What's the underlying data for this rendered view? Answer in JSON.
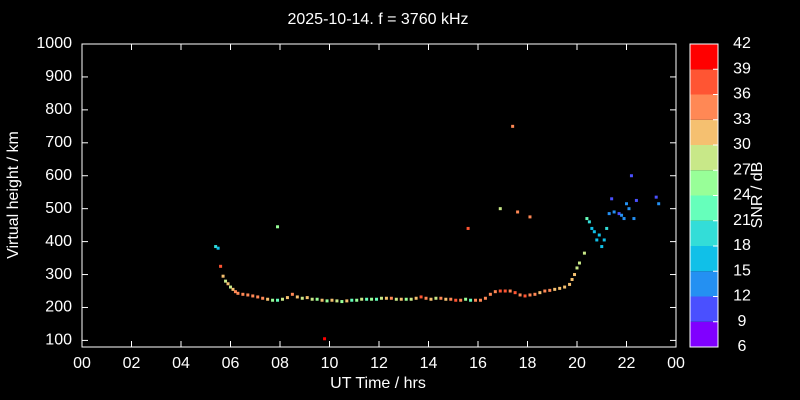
{
  "chart_data": {
    "type": "scatter",
    "title": "2025-10-14. f = 3760 kHz",
    "xlabel": "UT Time / hrs",
    "ylabel": "Virtual height / km",
    "xlim": [
      0,
      24
    ],
    "ylim": [
      80,
      1000
    ],
    "xticks": [
      {
        "value": 0,
        "label": "00"
      },
      {
        "value": 2,
        "label": "02"
      },
      {
        "value": 4,
        "label": "04"
      },
      {
        "value": 6,
        "label": "06"
      },
      {
        "value": 8,
        "label": "08"
      },
      10,
      12,
      14,
      16,
      18,
      20,
      22,
      {
        "value": 24,
        "label": "00"
      }
    ],
    "yticks": [
      100,
      200,
      300,
      400,
      500,
      600,
      700,
      800,
      900,
      1000
    ],
    "x": [
      5.4,
      5.5,
      5.6,
      5.7,
      5.8,
      5.9,
      6.0,
      6.1,
      6.2,
      6.3,
      6.5,
      6.7,
      6.9,
      7.1,
      7.3,
      7.5,
      7.7,
      7.9,
      8.1,
      8.3,
      8.5,
      8.7,
      8.9,
      9.1,
      9.3,
      9.5,
      9.7,
      9.9,
      10.1,
      10.3,
      10.5,
      10.7,
      10.9,
      11.1,
      11.3,
      11.5,
      11.7,
      11.9,
      12.1,
      12.3,
      12.5,
      12.7,
      12.9,
      13.1,
      13.3,
      13.5,
      13.7,
      13.9,
      14.1,
      14.3,
      14.5,
      14.7,
      14.9,
      15.1,
      15.3,
      15.5,
      15.7,
      15.9,
      16.1,
      16.3,
      16.5,
      16.7,
      16.9,
      17.1,
      17.3,
      17.5,
      17.7,
      17.9,
      18.1,
      18.3,
      18.5,
      18.7,
      18.9,
      19.1,
      19.3,
      19.5,
      19.7,
      19.8,
      19.9,
      20.0,
      20.1,
      20.3,
      20.4,
      20.5,
      20.6,
      20.7,
      20.8,
      20.9,
      21.0,
      21.1,
      21.2,
      21.3,
      21.4,
      21.5,
      21.7,
      21.8,
      21.9,
      22.0,
      22.1,
      22.2,
      22.3,
      22.4,
      23.2,
      23.3,
      7.9,
      9.8,
      15.6,
      16.9,
      17.4,
      17.6,
      18.1
    ],
    "y": [
      385,
      380,
      325,
      295,
      280,
      272,
      262,
      255,
      248,
      243,
      240,
      238,
      235,
      232,
      228,
      225,
      222,
      222,
      225,
      230,
      240,
      232,
      228,
      230,
      225,
      225,
      222,
      220,
      222,
      220,
      218,
      220,
      222,
      222,
      225,
      225,
      225,
      225,
      228,
      228,
      228,
      225,
      225,
      225,
      225,
      228,
      232,
      228,
      225,
      228,
      228,
      225,
      225,
      222,
      222,
      225,
      222,
      222,
      222,
      228,
      240,
      248,
      250,
      250,
      250,
      245,
      238,
      235,
      238,
      240,
      245,
      250,
      252,
      255,
      258,
      262,
      270,
      285,
      300,
      320,
      335,
      365,
      470,
      460,
      440,
      430,
      405,
      420,
      385,
      405,
      440,
      485,
      530,
      490,
      485,
      480,
      470,
      515,
      500,
      600,
      470,
      525,
      535,
      515,
      445,
      105,
      440,
      500,
      750,
      490,
      475
    ],
    "snr": [
      18,
      15,
      36,
      30,
      27,
      30,
      27,
      30,
      33,
      33,
      33,
      33,
      33,
      33,
      33,
      30,
      24,
      21,
      27,
      30,
      33,
      30,
      27,
      30,
      27,
      24,
      30,
      24,
      30,
      27,
      24,
      30,
      21,
      24,
      27,
      21,
      24,
      21,
      27,
      30,
      33,
      27,
      30,
      24,
      27,
      30,
      36,
      33,
      30,
      27,
      33,
      30,
      33,
      36,
      33,
      24,
      21,
      33,
      33,
      33,
      33,
      33,
      36,
      36,
      33,
      36,
      33,
      36,
      33,
      33,
      30,
      33,
      33,
      30,
      30,
      30,
      30,
      30,
      30,
      27,
      27,
      27,
      21,
      18,
      15,
      15,
      15,
      15,
      15,
      15,
      18,
      12,
      9,
      12,
      9,
      12,
      12,
      12,
      12,
      9,
      12,
      9,
      9,
      12,
      24,
      39,
      36,
      27,
      33,
      33,
      33
    ],
    "colorbar": {
      "label": "SNR / dB",
      "lim": [
        6,
        42
      ],
      "ticks": [
        6,
        9,
        12,
        15,
        18,
        21,
        24,
        27,
        30,
        33,
        36,
        39,
        42
      ],
      "colors": [
        "#8000ff",
        "#4a50ff",
        "#2490f2",
        "#10c0e8",
        "#33ddd8",
        "#66ffbb",
        "#98ff98",
        "#c8e888",
        "#f5c070",
        "#ff8855",
        "#ff5533",
        "#ff0000"
      ]
    }
  }
}
